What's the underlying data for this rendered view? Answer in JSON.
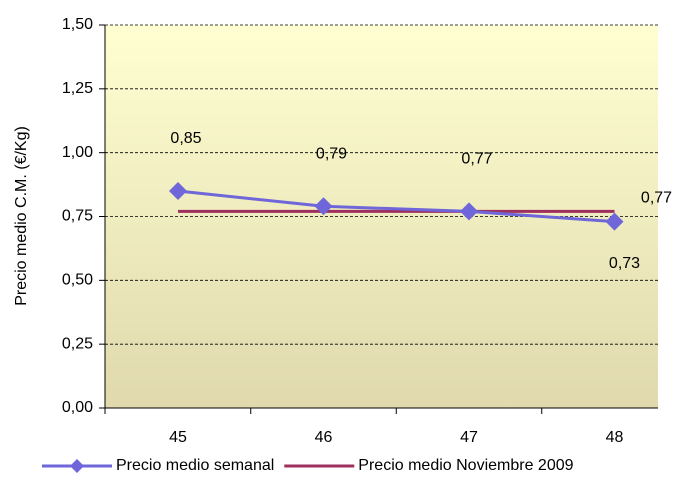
{
  "chart_data": {
    "type": "line",
    "y_label": "Precio medio C.M. (€/Kg)",
    "categories": [
      "45",
      "46",
      "47",
      "48"
    ],
    "series": [
      {
        "name": "Precio medio semanal",
        "color": "#6f66d9",
        "marker": "diamond",
        "values": [
          0.85,
          0.79,
          0.77,
          0.73
        ],
        "value_labels": [
          "0,85",
          "0,79",
          "0,77",
          "0,73"
        ]
      },
      {
        "name": "Precio medio Noviembre 2009",
        "color": "#9e2f5e",
        "values": [
          0.77,
          0.77,
          0.77,
          0.77
        ],
        "value_labels": [
          null,
          null,
          null,
          "0,77"
        ]
      }
    ],
    "ylim": [
      0,
      1.5
    ],
    "yticks": [
      {
        "value": 0,
        "label": "0,00"
      },
      {
        "value": 0.25,
        "label": "0,25"
      },
      {
        "value": 0.5,
        "label": "0,50"
      },
      {
        "value": 0.75,
        "label": "0,75"
      },
      {
        "value": 1,
        "label": "1,00"
      },
      {
        "value": 1.25,
        "label": "1,25"
      },
      {
        "value": 1.5,
        "label": "1,50"
      }
    ],
    "grid": true
  }
}
